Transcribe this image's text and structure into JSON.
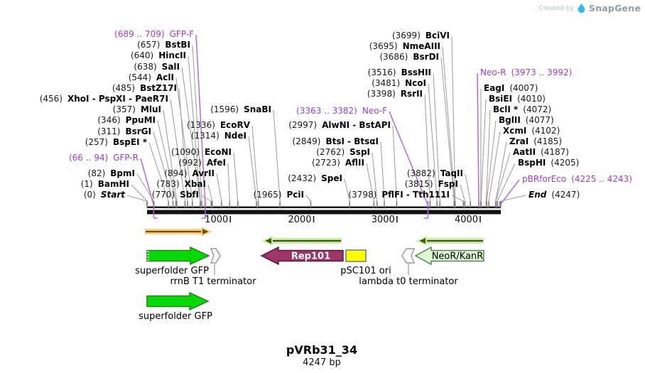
{
  "credit": {
    "created_by": "Created by",
    "brand": "SnapGene",
    "logo_icon": "droplet-icon",
    "logo_color": "#2fb9f2"
  },
  "plasmid": {
    "name": "pVRb31_34",
    "length": "4247 bp",
    "length_value": 4247
  },
  "scale": {
    "ticks": [
      "1000",
      "2000",
      "3000",
      "4000"
    ]
  },
  "colors": {
    "primer_text": "#a43bd0",
    "primer_line": "#b468e0",
    "leader_line": "#9a9a9a",
    "backbone": "#111111"
  },
  "sites": [
    {
      "pos": "(689 .. 709)",
      "name": "GFP-F",
      "type": "primer"
    },
    {
      "pos": "(657)",
      "name": "BstBI",
      "type": "enzyme"
    },
    {
      "pos": "(640)",
      "name": "HincII",
      "type": "enzyme"
    },
    {
      "pos": "(638)",
      "name": "SalI",
      "type": "enzyme"
    },
    {
      "pos": "(544)",
      "name": "AclI",
      "type": "enzyme"
    },
    {
      "pos": "(485)",
      "name": "BstZ17I",
      "type": "enzyme"
    },
    {
      "pos": "(456)",
      "name": "XhoI - PspXI - PaeR7I",
      "type": "enzyme"
    },
    {
      "pos": "(357)",
      "name": "MluI",
      "type": "enzyme"
    },
    {
      "pos": "(346)",
      "name": "PpuMI",
      "type": "enzyme"
    },
    {
      "pos": "(311)",
      "name": "BsrGI",
      "type": "enzyme"
    },
    {
      "pos": "(257)",
      "name": "BspEI *",
      "type": "enzyme"
    },
    {
      "pos": "(66 .. 94)",
      "name": "GFP-R",
      "type": "primer"
    },
    {
      "pos": "(82)",
      "name": "BpmI",
      "type": "enzyme"
    },
    {
      "pos": "(1)",
      "name": "BamHI",
      "type": "enzyme"
    },
    {
      "pos": "(0)",
      "name": "Start",
      "type": "marker"
    },
    {
      "pos": "(1596)",
      "name": "SnaBI",
      "type": "enzyme"
    },
    {
      "pos": "(1336)",
      "name": "EcoRV",
      "type": "enzyme"
    },
    {
      "pos": "(1314)",
      "name": "NdeI",
      "type": "enzyme"
    },
    {
      "pos": "(1090)",
      "name": "EcoNI",
      "type": "enzyme"
    },
    {
      "pos": "(992)",
      "name": "AfeI",
      "type": "enzyme"
    },
    {
      "pos": "(894)",
      "name": "AvrII",
      "type": "enzyme"
    },
    {
      "pos": "(783)",
      "name": "XbaI",
      "type": "enzyme"
    },
    {
      "pos": "(770)",
      "name": "SbfI",
      "type": "enzyme"
    },
    {
      "pos": "(1965)",
      "name": "PciI",
      "type": "enzyme"
    },
    {
      "pos": "(2432)",
      "name": "SpeI",
      "type": "enzyme"
    },
    {
      "pos": "(2997)",
      "name": "AlwNI - BstAPI",
      "type": "enzyme"
    },
    {
      "pos": "(2849)",
      "name": "BtsI - BtsαI",
      "type": "enzyme"
    },
    {
      "pos": "(2762)",
      "name": "SspI",
      "type": "enzyme"
    },
    {
      "pos": "(2723)",
      "name": "AflII",
      "type": "enzyme"
    },
    {
      "pos": "(3798)",
      "name": "PflFI - Tth111I",
      "type": "enzyme"
    },
    {
      "pos": "(3882)",
      "name": "TaqII",
      "type": "enzyme"
    },
    {
      "pos": "(3815)",
      "name": "FspI",
      "type": "enzyme"
    },
    {
      "pos": "(3699)",
      "name": "BciVI",
      "type": "enzyme"
    },
    {
      "pos": "(3695)",
      "name": "NmeAIII",
      "type": "enzyme"
    },
    {
      "pos": "(3686)",
      "name": "BsrDI",
      "type": "enzyme"
    },
    {
      "pos": "(3516)",
      "name": "BssHII",
      "type": "enzyme"
    },
    {
      "pos": "(3481)",
      "name": "NcoI",
      "type": "enzyme"
    },
    {
      "pos": "(3398)",
      "name": "RsrII",
      "type": "enzyme"
    },
    {
      "pos": "(3363 .. 3382)",
      "name": "Neo-F",
      "type": "primer"
    },
    {
      "pos": "(3973 .. 3992)",
      "name": "Neo-R",
      "type": "primer"
    },
    {
      "pos": "(4007)",
      "name": "EagI",
      "type": "enzyme"
    },
    {
      "pos": "(4010)",
      "name": "BsiEI",
      "type": "enzyme"
    },
    {
      "pos": "(4072)",
      "name": "BclI *",
      "type": "enzyme"
    },
    {
      "pos": "(4077)",
      "name": "BglII",
      "type": "enzyme"
    },
    {
      "pos": "(4102)",
      "name": "XcmI",
      "type": "enzyme"
    },
    {
      "pos": "(4185)",
      "name": "ZraI",
      "type": "enzyme"
    },
    {
      "pos": "(4187)",
      "name": "AatII",
      "type": "enzyme"
    },
    {
      "pos": "(4205)",
      "name": "BspHI",
      "type": "enzyme"
    },
    {
      "pos": "(4225 .. 4243)",
      "name": "pBRforEco",
      "type": "primer"
    },
    {
      "pos": "(4247)",
      "name": "End",
      "type": "marker"
    }
  ],
  "features": [
    {
      "label": "superfolder GFP",
      "fill": "#06d806",
      "stroke": "#2a7e19",
      "text_inside": false
    },
    {
      "label": "rrnB T1 terminator",
      "fill": "#ffffff",
      "stroke": "#9a9a9a",
      "text_inside": false
    },
    {
      "label": "Rep101",
      "fill": "#9e3667",
      "stroke": "#571c38",
      "text_inside": true,
      "text_color": "#ffffff",
      "bold": true
    },
    {
      "label": "pSC101 ori",
      "fill": "#ffff00",
      "stroke": "#777777",
      "text_inside": false
    },
    {
      "label": "lambda t0 terminator",
      "fill": "#ffffff",
      "stroke": "#9a9a9a",
      "text_inside": false
    },
    {
      "label": "NeoR/KanR",
      "fill": "#ddf8d3",
      "stroke": "#59855a",
      "text_inside": true,
      "text_color": "#000000",
      "bold": false
    },
    {
      "label": "superfolder GFP",
      "fill": "#06d806",
      "stroke": "#2a7e19",
      "text_inside": false
    }
  ],
  "orf_arrows": [
    {
      "name": "orf-arrow-orange",
      "direction": "right",
      "halo": "#ffd089",
      "core": "#6e4f03"
    },
    {
      "name": "orf-arrow-green",
      "direction": "left",
      "halo": "#c8efa2",
      "core": "#45561a"
    },
    {
      "name": "orf-arrow-green",
      "direction": "left",
      "halo": "#c8efa2",
      "core": "#45561a"
    }
  ]
}
